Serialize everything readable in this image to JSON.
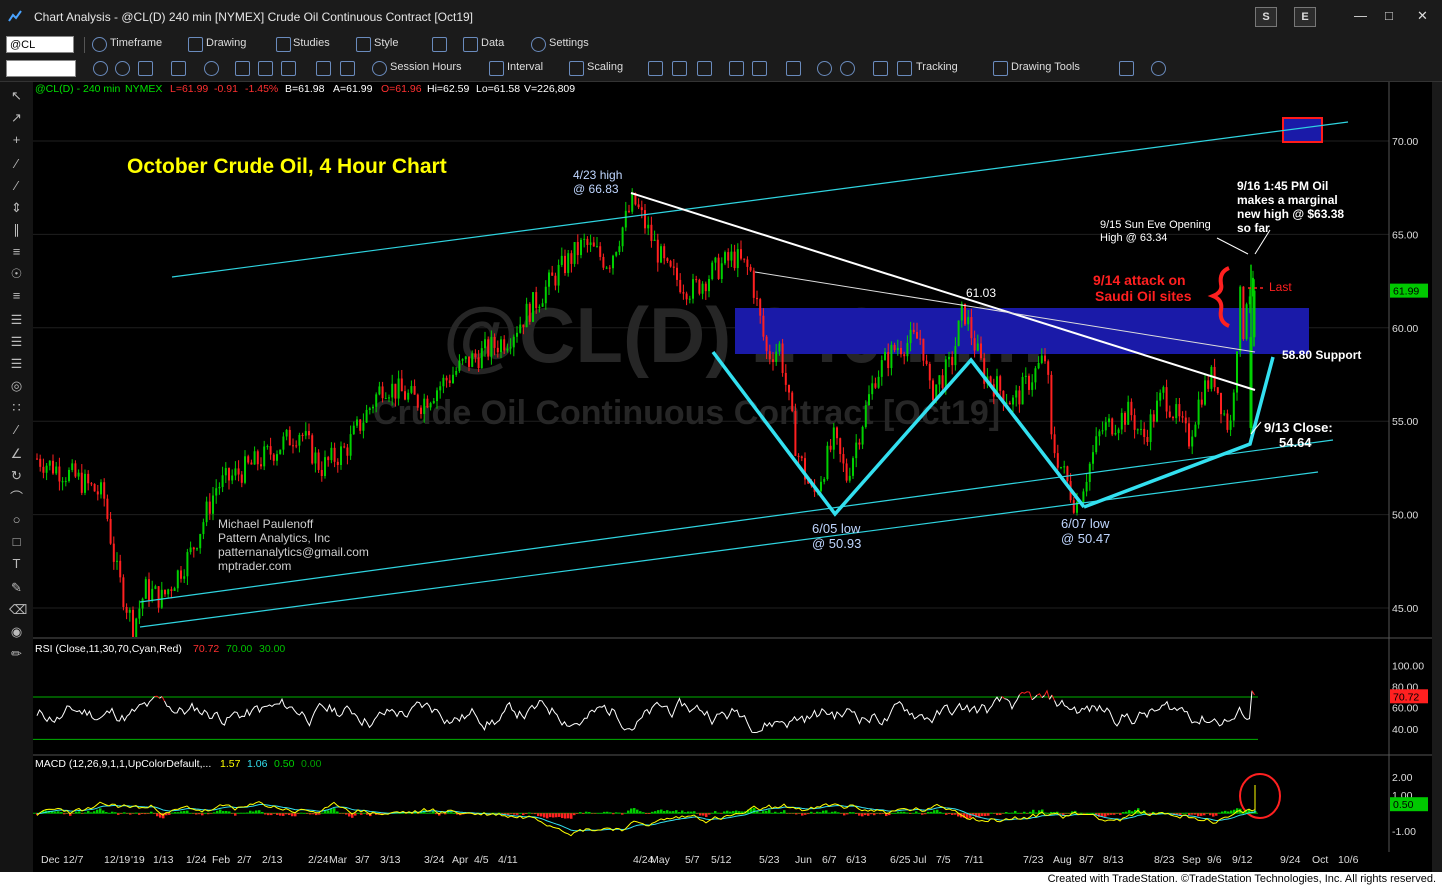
{
  "window": {
    "title": "Chart Analysis - @CL(D) 240 min [NYMEX] Crude Oil Continuous Contract [Oct19]",
    "buttons": {
      "s": "S",
      "e": "E"
    },
    "controls": {
      "minimize": "—",
      "maximize": "□",
      "close": "✕"
    }
  },
  "toolbar1": {
    "symbol": "@CL",
    "timeframe": "Timeframe",
    "drawing": "Drawing",
    "studies": "Studies",
    "style": "Style",
    "data": "Data",
    "settings": "Settings"
  },
  "toolbar2": {
    "session_hours": "Session Hours",
    "interval": "Interval",
    "scaling": "Scaling",
    "tracking": "Tracking",
    "drawing_tools": "Drawing Tools"
  },
  "footer": {
    "credit": "Created with TradeStation. ©TradeStation Technologies, Inc. All rights reserved."
  },
  "colors": {
    "up": "#00d000",
    "down": "#ff2020",
    "cyan": "#33e0f0",
    "support_band": "#1a1aa8",
    "yellow": "#ffff00"
  },
  "chart_data": [
    {
      "type": "candlestick",
      "title": "October Crude Oil, 4 Hour Chart",
      "status_line": {
        "symbol": "@CL(D) - 240 min",
        "exchange": "NYMEX",
        "last": "L=61.99",
        "change": "-0.91",
        "change_pct": "-1.45%",
        "bid": "B=61.98",
        "ask": "A=61.99",
        "open": "O=61.96",
        "high": "Hi=62.59",
        "low": "Lo=61.58",
        "volume": "V=226,809"
      },
      "watermark": {
        "line1": "@CL(D) 240 min",
        "line2": "Crude Oil Continuous Contract [Oct19]"
      },
      "ylim": [
        43,
        72
      ],
      "y_ticks": [
        "70.00",
        "65.00",
        "60.00",
        "55.00",
        "50.00",
        "45.00"
      ],
      "last_price_label": "61.99",
      "x_ticks": [
        "Dec",
        "12/7",
        "12/19",
        "'19",
        "1/13",
        "1/24",
        "Feb",
        "2/7",
        "2/13",
        "2/24",
        "Mar",
        "3/7",
        "3/13",
        "3/24",
        "Apr",
        "4/5",
        "4/11",
        "4/24",
        "May",
        "5/7",
        "5/12",
        "5/23",
        "Jun",
        "6/7",
        "6/13",
        "6/25",
        "Jul",
        "7/5",
        "7/11",
        "7/23",
        "Aug",
        "8/7",
        "8/13",
        "8/23",
        "Sep",
        "9/6",
        "9/12",
        "9/24",
        "Oct",
        "10/6"
      ],
      "price_path": [
        [
          "Dec 1",
          53.0
        ],
        [
          "Dec 10",
          52.0
        ],
        [
          "Dec 17",
          51.0
        ],
        [
          "Dec 20",
          47.0
        ],
        [
          "Dec 24",
          44.0
        ],
        [
          "Dec 27",
          46.0
        ],
        [
          "Dec 31",
          45.5
        ],
        [
          "Jan 7",
          48.0
        ],
        [
          "Jan 13",
          51.5
        ],
        [
          "Jan 24",
          53.0
        ],
        [
          "Feb 2",
          54.5
        ],
        [
          "Feb 7",
          52.5
        ],
        [
          "Feb 13",
          53.5
        ],
        [
          "Feb 22",
          57.0
        ],
        [
          "Mar 3",
          56.0
        ],
        [
          "Mar 13",
          58.0
        ],
        [
          "Mar 24",
          59.5
        ],
        [
          "Apr 5",
          63.0
        ],
        [
          "Apr 11",
          64.5
        ],
        [
          "Apr 17",
          63.5
        ],
        [
          "Apr 23",
          66.83
        ],
        [
          "May 1",
          63.0
        ],
        [
          "May 7",
          62.0
        ],
        [
          "May 12",
          63.0
        ],
        [
          "May 17",
          63.8
        ],
        [
          "May 21",
          63.0
        ],
        [
          "May 25",
          58.5
        ],
        [
          "May 28",
          59.0
        ],
        [
          "Jun 1",
          53.5
        ],
        [
          "Jun 5",
          50.93
        ],
        [
          "Jun 10",
          54.0
        ],
        [
          "Jun 13",
          52.0
        ],
        [
          "Jun 20",
          57.5
        ],
        [
          "Jun 25",
          59.0
        ],
        [
          "Jul 1",
          59.5
        ],
        [
          "Jul 3",
          56.5
        ],
        [
          "Jul 8",
          58.0
        ],
        [
          "Jul 11",
          61.03
        ],
        [
          "Jul 16",
          57.5
        ],
        [
          "Jul 23",
          56.0
        ],
        [
          "Jul 31",
          58.5
        ],
        [
          "Aug 1",
          54.0
        ],
        [
          "Aug 7",
          50.47
        ],
        [
          "Aug 13",
          54.5
        ],
        [
          "Aug 20",
          55.5
        ],
        [
          "Aug 23",
          54.0
        ],
        [
          "Aug 28",
          56.5
        ],
        [
          "Sep 3",
          54.0
        ],
        [
          "Sep 6",
          56.5
        ],
        [
          "Sep 9",
          57.5
        ],
        [
          "Sep 12",
          55.0
        ],
        [
          "Sep 13",
          54.64
        ],
        [
          "Sep 16",
          63.38
        ],
        [
          "Sep 16",
          59.5
        ],
        [
          "Sep 17",
          61.99
        ]
      ],
      "annotations": [
        {
          "text": "4/23 high",
          "text2": "@ 66.83"
        },
        {
          "text": "61.03"
        },
        {
          "text": "6/05 low",
          "text2": "@ 50.93"
        },
        {
          "text": "6/07 low",
          "text2": "@ 50.47"
        },
        {
          "text": "9/15 Sun Eve Opening",
          "text2": "High @ 63.34"
        },
        {
          "text": "9/16 1:45 PM Oil",
          "text2": "makes a marginal",
          "text3": "new high @ $63.38",
          "text4": "so far"
        },
        {
          "text": "9/14 attack on",
          "text2": "Saudi Oil sites"
        },
        {
          "text": "Last"
        },
        {
          "text": "58.80 Support"
        },
        {
          "text": "9/13 Close:",
          "text2": "54.64"
        }
      ],
      "credit": {
        "line1": "Michael Paulenoff",
        "line2": "Pattern Analytics, Inc",
        "line3": "patternanalytics@gmail.com",
        "line4": "mptrader.com"
      }
    },
    {
      "type": "line",
      "name": "RSI (Close,11,30,70,Cyan,Red)",
      "values_label": [
        "70.72",
        "70.00",
        "30.00"
      ],
      "ylim": [
        20,
        105
      ],
      "y_ticks": [
        "100.00",
        "80.00",
        "60.00",
        "40.00"
      ],
      "last_label": "70.72",
      "upper": 70,
      "lower": 30
    },
    {
      "type": "line",
      "name": "MACD (12,26,9,1,1,UpColorDefault,...",
      "values_label": [
        "1.57",
        "1.06",
        "0.50",
        "0.00"
      ],
      "ylim": [
        -1.6,
        2.4
      ],
      "y_ticks": [
        "2.00",
        "1.00",
        "-1.00"
      ],
      "last_label": "0.50"
    }
  ]
}
